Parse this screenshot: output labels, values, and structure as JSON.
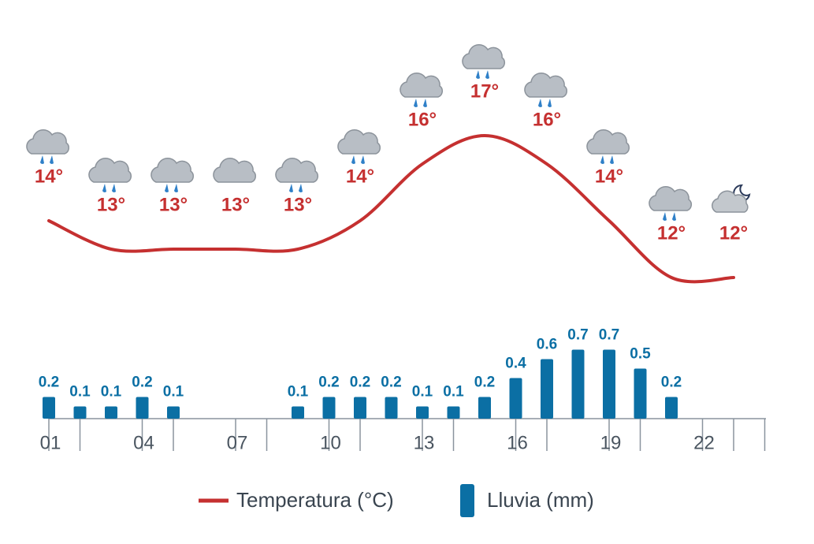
{
  "chart_data": [
    {
      "type": "line",
      "series": [
        {
          "name": "Temperatura (°C)",
          "color": "#c53030",
          "values": [
            14,
            13,
            13,
            13,
            13,
            14,
            16,
            17,
            16,
            14,
            12,
            12
          ],
          "value_labels": [
            "14°",
            "13°",
            "13°",
            "13°",
            "13°",
            "14°",
            "16°",
            "17°",
            "16°",
            "14°",
            "12°",
            "12°"
          ]
        }
      ]
    },
    {
      "type": "bar",
      "categories": [
        "01",
        null,
        null,
        "04",
        null,
        null,
        "07",
        null,
        null,
        "10",
        null,
        null,
        "13",
        null,
        null,
        "16",
        null,
        null,
        "19",
        null,
        null,
        "22",
        null,
        null
      ],
      "series": [
        {
          "name": "Lluvia (mm)",
          "color": "#0b6fa4",
          "values": [
            0.2,
            0.1,
            0.1,
            0.2,
            0.1,
            null,
            null,
            null,
            0.1,
            0.2,
            0.2,
            0.2,
            0.1,
            0.1,
            0.2,
            0.4,
            0.6,
            0.7,
            0.7,
            0.5,
            0.2,
            null,
            null,
            null
          ]
        }
      ]
    }
  ]
}
